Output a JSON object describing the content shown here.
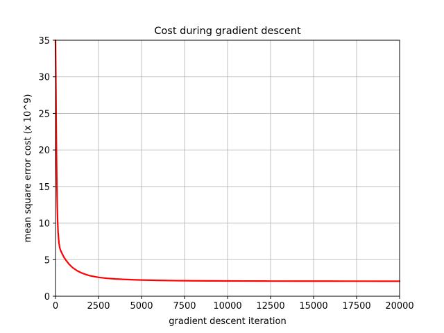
{
  "chart_data": {
    "type": "line",
    "title": "Cost during gradient descent",
    "xlabel": "gradient descent iteration",
    "ylabel": "mean square error cost (x 10^9)",
    "xlim": [
      0,
      20000
    ],
    "ylim": [
      0,
      35
    ],
    "xticks": [
      0,
      2500,
      5000,
      7500,
      10000,
      12500,
      15000,
      17500,
      20000
    ],
    "yticks": [
      0,
      5,
      10,
      15,
      20,
      25,
      30,
      35
    ],
    "xtick_labels": [
      "0",
      "2500",
      "5000",
      "7500",
      "10000",
      "12500",
      "15000",
      "17500",
      "20000"
    ],
    "ytick_labels": [
      "0",
      "5",
      "10",
      "15",
      "20",
      "25",
      "30",
      "35"
    ],
    "grid": true,
    "legend": "none",
    "series": [
      {
        "color": "#ff0000",
        "x": [
          0,
          20,
          40,
          60,
          80,
          100,
          120,
          150,
          200,
          250,
          300,
          350,
          400,
          500,
          600,
          800,
          1000,
          1250,
          1500,
          1750,
          2000,
          2500,
          3000,
          3500,
          4000,
          4500,
          5000,
          6000,
          7000,
          7500,
          8000,
          9000,
          10000,
          11000,
          12000,
          12500,
          13000,
          14000,
          15000,
          16000,
          17000,
          17500,
          18000,
          19000,
          20000
        ],
        "values": [
          35.0,
          30.0,
          24.0,
          19.0,
          15.5,
          12.5,
          10.5,
          8.8,
          7.3,
          6.6,
          6.25,
          6.0,
          5.75,
          5.3,
          4.95,
          4.35,
          3.9,
          3.5,
          3.2,
          2.98,
          2.8,
          2.58,
          2.45,
          2.36,
          2.3,
          2.25,
          2.22,
          2.17,
          2.13,
          2.12,
          2.11,
          2.1,
          2.09,
          2.08,
          2.075,
          2.07,
          2.07,
          2.065,
          2.06,
          2.06,
          2.055,
          2.055,
          2.055,
          2.05,
          2.05
        ]
      }
    ]
  }
}
